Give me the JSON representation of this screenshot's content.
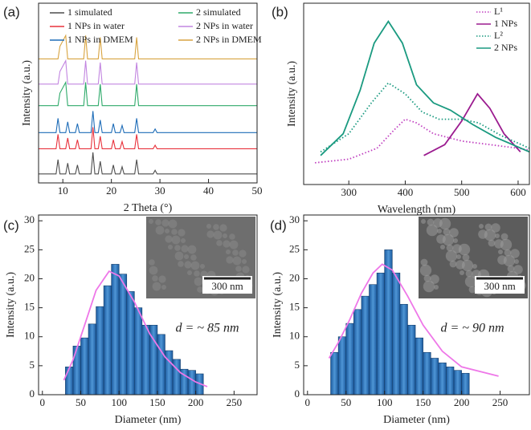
{
  "chart_data": [
    {
      "type": "line",
      "title": "(a)",
      "xlabel": "2 Theta (°)",
      "ylabel": "Intensity (a.u.)",
      "xlim": [
        5,
        50
      ],
      "xticks": [
        10,
        20,
        30,
        40,
        50
      ],
      "ylim": [
        0,
        100
      ],
      "legend": "upper center",
      "legend_ncol": 2,
      "x": [
        5,
        8.6,
        9.0,
        9.4,
        10.6,
        11.0,
        11.4,
        12.6,
        13.0,
        13.4,
        14.3,
        14.7,
        15.1,
        15.8,
        16.2,
        16.6,
        17.3,
        17.7,
        18.1,
        20.0,
        20.4,
        20.8,
        21.8,
        22.2,
        22.6,
        24.8,
        25.2,
        25.6,
        28.6,
        29.0,
        29.4,
        50
      ],
      "series": [
        {
          "name": "1 simulated",
          "color": "#4d4d4d",
          "values": [
            5,
            5,
            13,
            5,
            5,
            11,
            5,
            5,
            10,
            5,
            5,
            5,
            5,
            5,
            17,
            5,
            5,
            12,
            5,
            5,
            10,
            5,
            5,
            9,
            5,
            5,
            13,
            5,
            5,
            7,
            5,
            5
          ]
        },
        {
          "name": "1 NPs in water",
          "color": "#e8323c",
          "values": [
            19,
            19,
            27,
            19,
            19,
            25,
            19,
            19,
            24,
            19,
            19,
            19,
            19,
            19,
            31,
            19,
            19,
            26,
            19,
            19,
            24,
            19,
            19,
            23,
            19,
            19,
            27,
            19,
            19,
            21,
            19,
            19
          ]
        },
        {
          "name": "1 NPs in DMEM",
          "color": "#1f6db8",
          "values": [
            28,
            28,
            36,
            28,
            28,
            34,
            28,
            28,
            33,
            28,
            28,
            28,
            28,
            28,
            40,
            28,
            28,
            35,
            28,
            28,
            33,
            28,
            28,
            32,
            28,
            28,
            36,
            28,
            28,
            30,
            28,
            28
          ]
        },
        {
          "name": "2 simulated",
          "color": "#2eaa6a",
          "values": [
            43,
            43,
            43,
            50,
            56,
            43,
            43,
            43,
            43,
            43,
            43,
            56,
            43,
            43,
            43,
            43,
            43,
            55,
            43,
            43,
            43,
            43,
            43,
            43,
            43,
            43,
            55,
            43,
            43,
            43,
            43,
            43
          ]
        },
        {
          "name": "2 NPs in water",
          "color": "#c285e0",
          "values": [
            55,
            55,
            55,
            62,
            68,
            55,
            55,
            55,
            55,
            55,
            55,
            68,
            55,
            55,
            55,
            55,
            55,
            67,
            55,
            55,
            55,
            55,
            55,
            55,
            55,
            55,
            67,
            55,
            55,
            55,
            55,
            55
          ]
        },
        {
          "name": "2 NPs in DMEM",
          "color": "#d8a440",
          "values": [
            69,
            69,
            69,
            76,
            82,
            69,
            69,
            69,
            69,
            69,
            69,
            82,
            69,
            69,
            69,
            69,
            69,
            81,
            69,
            69,
            69,
            69,
            69,
            69,
            69,
            69,
            81,
            69,
            69,
            69,
            69,
            69
          ]
        }
      ]
    },
    {
      "type": "line",
      "title": "(b)",
      "xlabel": "Wavelength (nm)",
      "ylabel": "Intensity (a.u.)",
      "xlim": [
        220,
        620
      ],
      "xticks": [
        300,
        400,
        500,
        600
      ],
      "ylim": [
        0,
        100
      ],
      "legend": "upper right",
      "legend_ncol": 1,
      "series": [
        {
          "name": "L¹",
          "color": "#c040c0",
          "dash": "dotted",
          "x": [
            240,
            300,
            350,
            380,
            400,
            420,
            450,
            500,
            550,
            600,
            620
          ],
          "values": [
            12,
            14,
            20,
            30,
            36,
            34,
            28,
            24,
            22,
            20,
            19
          ]
        },
        {
          "name": "1 NPs",
          "color": "#9b1b8f",
          "dash": "solid",
          "x": [
            433,
            470,
            500,
            528,
            550,
            575,
            604
          ],
          "values": [
            16,
            22,
            35,
            50,
            42,
            28,
            18
          ]
        },
        {
          "name": "L²",
          "color": "#1a9a80",
          "dash": "dotted",
          "x": [
            250,
            300,
            340,
            370,
            400,
            430,
            460,
            500,
            530,
            570,
            620
          ],
          "values": [
            18,
            28,
            45,
            56,
            50,
            40,
            36,
            36,
            34,
            27,
            20
          ]
        },
        {
          "name": "2 NPs",
          "color": "#1a9a80",
          "dash": "solid",
          "x": [
            250,
            290,
            320,
            345,
            370,
            395,
            420,
            450,
            480,
            520,
            560,
            620
          ],
          "values": [
            16,
            28,
            52,
            78,
            90,
            78,
            55,
            45,
            41,
            33,
            26,
            18
          ]
        }
      ]
    },
    {
      "type": "histogram",
      "title": "(c)",
      "xlabel": "Diameter (nm)",
      "ylabel": "Intensity (a.u.)",
      "xlim": [
        -5,
        280
      ],
      "xticks": [
        0,
        50,
        100,
        150,
        200,
        250
      ],
      "ylim": [
        0,
        31
      ],
      "yticks": [
        0,
        5,
        10,
        15,
        20,
        25,
        30
      ],
      "color": "#2a6fb8",
      "bins": [
        30,
        40,
        50,
        60,
        70,
        80,
        90,
        100,
        110,
        120,
        130,
        140,
        150,
        160,
        170,
        180,
        190,
        200,
        210
      ],
      "values": [
        4.8,
        8.4,
        9.8,
        12.2,
        15.2,
        18.8,
        22.5,
        20.8,
        17.8,
        15.0,
        12.0,
        12.0,
        10.4,
        7.6,
        6.1,
        4.4,
        4.2,
        3.6
      ],
      "fit": {
        "color": "#ee77e8",
        "x": [
          28,
          40,
          55,
          70,
          87,
          100,
          120,
          140,
          160,
          180,
          200,
          215
        ],
        "values": [
          2.5,
          6,
          12,
          18,
          21.3,
          20.5,
          16,
          10.5,
          6.5,
          3.8,
          2.2,
          1.4
        ]
      },
      "inset_label": "300 nm",
      "annotation": "d = ~ 85 nm"
    },
    {
      "type": "histogram",
      "title": "(d)",
      "xlabel": "Diameter (nm)",
      "ylabel": "Intensity (a.u.)",
      "xlim": [
        -5,
        288
      ],
      "xticks": [
        0,
        50,
        100,
        150,
        200,
        250
      ],
      "ylim": [
        0,
        31
      ],
      "yticks": [
        0,
        5,
        10,
        15,
        20,
        25,
        30
      ],
      "color": "#2a6fb8",
      "bins": [
        30,
        40,
        50,
        60,
        70,
        80,
        90,
        100,
        110,
        120,
        130,
        140,
        150,
        160,
        170,
        180,
        190,
        200,
        210
      ],
      "values": [
        7.3,
        10.0,
        12.3,
        14.7,
        17.0,
        19.0,
        21.0,
        25.0,
        21.0,
        15.6,
        12.0,
        9.8,
        7.3,
        6.3,
        5.5,
        4.8,
        4.2,
        3.7
      ],
      "fit": {
        "color": "#ee77e8",
        "x": [
          28,
          40,
          55,
          70,
          85,
          97,
          110,
          130,
          150,
          175,
          200,
          248
        ],
        "values": [
          6.3,
          9,
          13,
          17.5,
          21,
          22.5,
          21.5,
          17,
          12,
          7.5,
          4.8,
          3.2
        ]
      },
      "inset_label": "300 nm",
      "annotation": "d = ~ 90 nm"
    }
  ]
}
